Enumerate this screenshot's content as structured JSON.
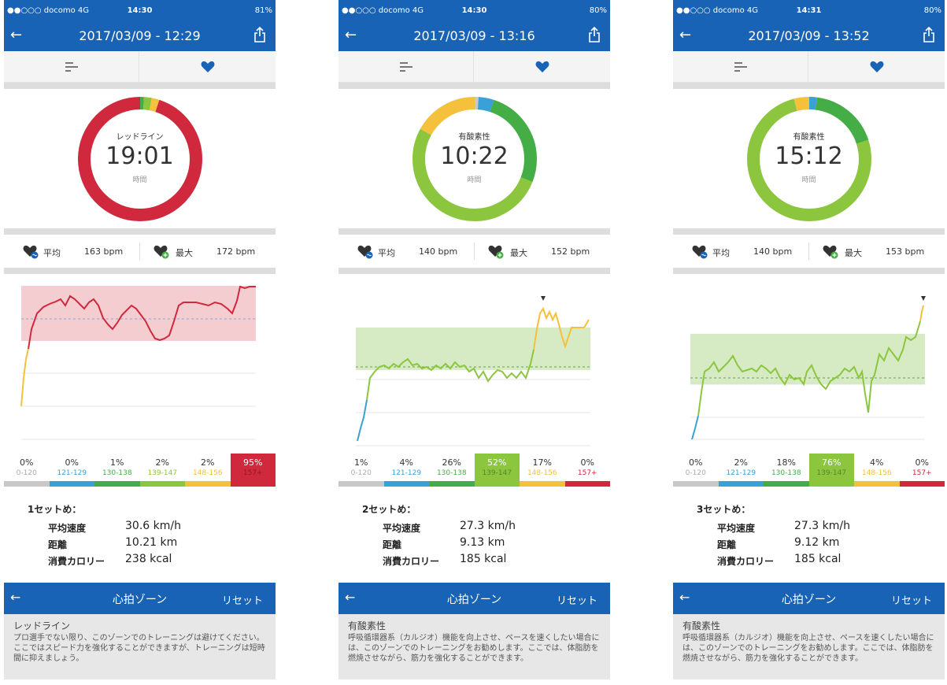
{
  "panels": [
    {
      "status": {
        "carrier": "●●○○○ docomo  4G",
        "time": "14:30",
        "battery": "81%"
      },
      "nav_title": "2017/03/09 - 12:29",
      "zone_name": "レッドライン",
      "duration": "19:01",
      "duration_unit": "時間",
      "avg_label": "平均",
      "avg_value": "163 bpm",
      "max_label": "最大",
      "max_value": "172 bpm",
      "zones": [
        {
          "pct": "0%",
          "range": "0-120"
        },
        {
          "pct": "0%",
          "range": "121-129"
        },
        {
          "pct": "1%",
          "range": "130-138"
        },
        {
          "pct": "2%",
          "range": "139-147"
        },
        {
          "pct": "2%",
          "range": "148-156"
        },
        {
          "pct": "95%",
          "range": "157+"
        }
      ],
      "active_zone_index": 5,
      "set_title": "1セットめ：",
      "stats": [
        {
          "label": "平均速度",
          "value": "30.6 km/h"
        },
        {
          "label": "距離",
          "value": "10.21 km"
        },
        {
          "label": "消費カロリー",
          "value": "238 kcal"
        }
      ],
      "zonecard": {
        "title": "心拍ゾーン",
        "reset": "リセット",
        "zone_title": "レッドライン",
        "description": "プロ選手でない限り、このゾーンでのトレーニングは避けてください。ここではスピード力を強化することができますが、トレーニングは短時間に抑えましょう。"
      }
    },
    {
      "status": {
        "carrier": "●●○○○ docomo  4G",
        "time": "14:30",
        "battery": "80%"
      },
      "nav_title": "2017/03/09 - 13:16",
      "zone_name": "有酸素性",
      "duration": "10:22",
      "duration_unit": "時間",
      "avg_label": "平均",
      "avg_value": "140 bpm",
      "max_label": "最大",
      "max_value": "152 bpm",
      "zones": [
        {
          "pct": "1%",
          "range": "0-120"
        },
        {
          "pct": "4%",
          "range": "121-129"
        },
        {
          "pct": "26%",
          "range": "130-138"
        },
        {
          "pct": "52%",
          "range": "139-147"
        },
        {
          "pct": "17%",
          "range": "148-156"
        },
        {
          "pct": "0%",
          "range": "157+"
        }
      ],
      "active_zone_index": 3,
      "set_title": "2セットめ：",
      "stats": [
        {
          "label": "平均速度",
          "value": "27.3 km/h"
        },
        {
          "label": "距離",
          "value": "9.13 km"
        },
        {
          "label": "消費カロリー",
          "value": "185 kcal"
        }
      ],
      "zonecard": {
        "title": "心拍ゾーン",
        "reset": "リセット",
        "zone_title": "有酸素性",
        "description": "呼吸循環器系（カルジオ）機能を向上させ、ペースを速くしたい場合には、このゾーンでのトレーニングをお勧めします。ここでは、体脂肪を燃焼させながら、筋力を強化することができます。"
      }
    },
    {
      "status": {
        "carrier": "●●○○○ docomo  4G",
        "time": "14:31",
        "battery": "80%"
      },
      "nav_title": "2017/03/09 - 13:52",
      "zone_name": "有酸素性",
      "duration": "15:12",
      "duration_unit": "時間",
      "avg_label": "平均",
      "avg_value": "140 bpm",
      "max_label": "最大",
      "max_value": "153 bpm",
      "zones": [
        {
          "pct": "0%",
          "range": "0-120"
        },
        {
          "pct": "2%",
          "range": "121-129"
        },
        {
          "pct": "18%",
          "range": "130-138"
        },
        {
          "pct": "76%",
          "range": "139-147"
        },
        {
          "pct": "4%",
          "range": "148-156"
        },
        {
          "pct": "0%",
          "range": "157+"
        }
      ],
      "active_zone_index": 3,
      "set_title": "3セットめ：",
      "stats": [
        {
          "label": "平均速度",
          "value": "27.3 km/h"
        },
        {
          "label": "距離",
          "value": "9.12 km"
        },
        {
          "label": "消費カロリー",
          "value": "185 kcal"
        }
      ],
      "zonecard": {
        "title": "心拍ゾーン",
        "reset": "リセット",
        "zone_title": "有酸素性",
        "description": "呼吸循環器系（カルジオ）機能を向上させ、ペースを速くしたい場合には、このゾーンでのトレーニングをお勧めします。ここでは、体脂肪を燃焼させながら、筋力を強化することができます。"
      }
    }
  ],
  "colors": {
    "brand": "#1863b5",
    "zone_colors": [
      "#c8c8c8",
      "#3aa0d8",
      "#45ad45",
      "#8cc63f",
      "#f5c03c",
      "#d0283c"
    ],
    "range_text_colors": [
      "#aaaaaa",
      "#3aa0d8",
      "#45ad45",
      "#8cc63f",
      "#f5c03c",
      "#d0283c"
    ]
  },
  "icons": {
    "back": "←",
    "share": "share-icon",
    "list": "list-icon",
    "heart": "heart-icon",
    "avg": "heart-avg-icon",
    "max": "heart-max-icon"
  }
}
